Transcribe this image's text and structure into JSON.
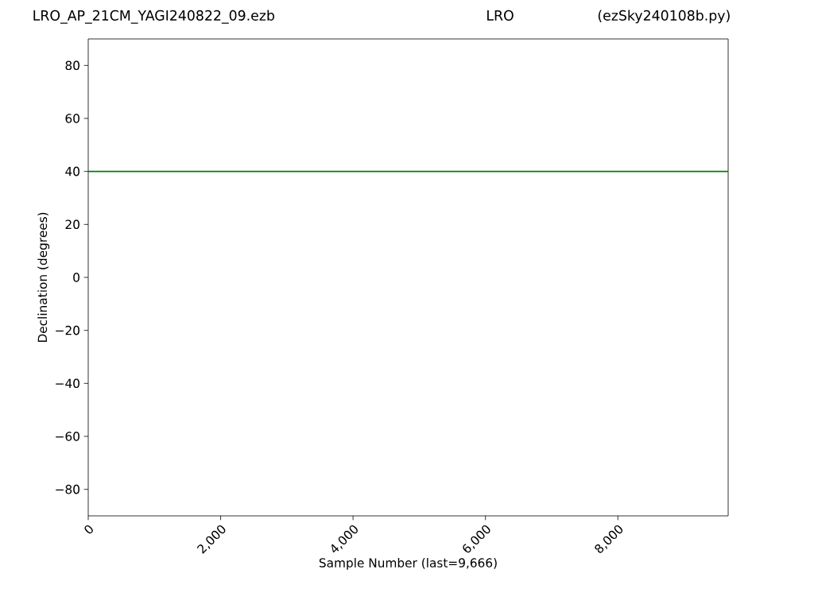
{
  "chart_data": {
    "type": "line",
    "title": "LRO_AP_21CM_YAGI240822_09.ezb",
    "annotations": [
      "LRO",
      "(ezSky240108b.py)"
    ],
    "xlabel": "Sample Number (last=9,666)",
    "ylabel": "Declination (degrees)",
    "x": [
      0,
      9666
    ],
    "series": [
      {
        "color": "#008000",
        "values": [
          40,
          40
        ]
      }
    ],
    "xlim": [
      0,
      9666
    ],
    "ylim": [
      -90,
      90
    ],
    "xticks": [
      0,
      {
        "value": 2000,
        "label": "2,000"
      },
      {
        "value": 4000,
        "label": "4,000"
      },
      {
        "value": 6000,
        "label": "6,000"
      },
      {
        "value": 8000,
        "label": "8,000"
      }
    ],
    "yticks": [
      {
        "value": -80,
        "label": "−80"
      },
      {
        "value": -60,
        "label": "−60"
      },
      {
        "value": -40,
        "label": "−40"
      },
      {
        "value": -20,
        "label": "−20"
      },
      0,
      20,
      40,
      60,
      80
    ],
    "grid": false,
    "marker": "none",
    "line_style": "solid"
  }
}
